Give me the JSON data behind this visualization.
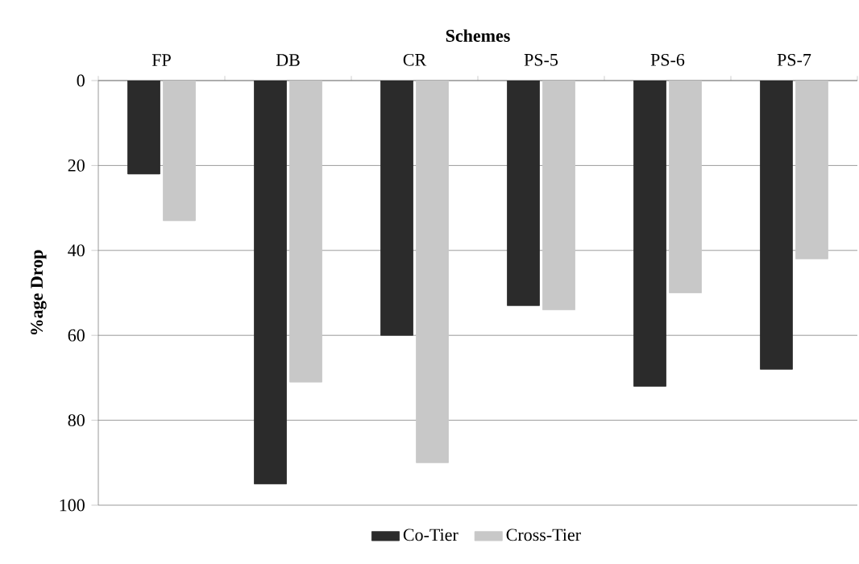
{
  "chart_data": {
    "type": "bar",
    "xlabel": "Schemes",
    "ylabel": "%age Drop",
    "categories": [
      "FP",
      "DB",
      "CR",
      "PS-5",
      "PS-6",
      "PS-7"
    ],
    "series": [
      {
        "name": "Co-Tier",
        "color": "#2b2b2b",
        "values": [
          22,
          95,
          60,
          53,
          72,
          68
        ]
      },
      {
        "name": "Cross-Tier",
        "color": "#c8c8c8",
        "values": [
          33,
          71,
          90,
          54,
          50,
          42
        ]
      }
    ],
    "ylim": [
      100,
      0
    ],
    "yticks": [
      0,
      20,
      40,
      60,
      80,
      100
    ],
    "grid": "y",
    "legend": "bottom"
  }
}
